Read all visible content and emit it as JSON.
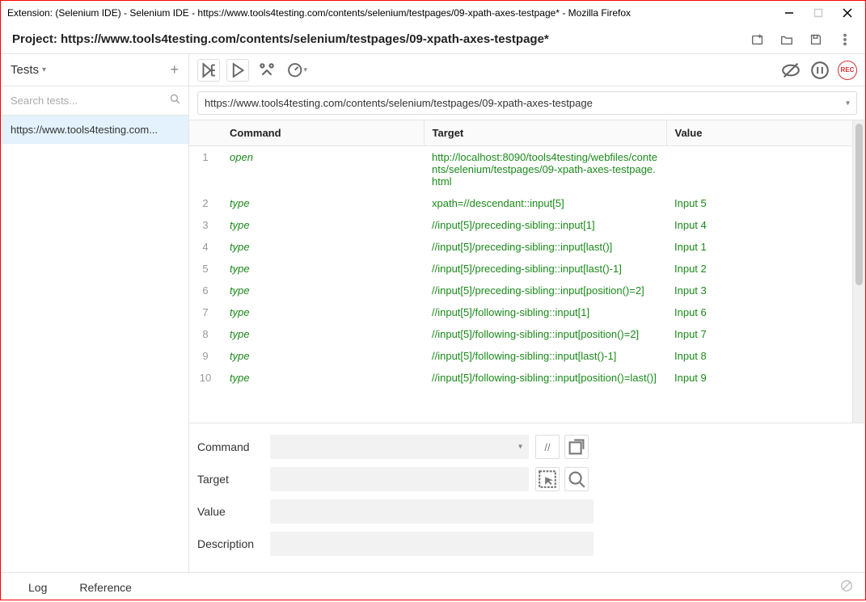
{
  "window": {
    "title": "Extension: (Selenium IDE) - Selenium IDE - https://www.tools4testing.com/contents/selenium/testpages/09-xpath-axes-testpage* - Mozilla Firefox"
  },
  "project": {
    "label": "Project:  https://www.tools4testing.com/contents/selenium/testpages/09-xpath-axes-testpage*"
  },
  "sidebar": {
    "heading": "Tests",
    "search_placeholder": "Search tests...",
    "test_item": "https://www.tools4testing.com..."
  },
  "url_field": "https://www.tools4testing.com/contents/selenium/testpages/09-xpath-axes-testpage",
  "headers": {
    "command": "Command",
    "target": "Target",
    "value": "Value"
  },
  "rows": [
    {
      "n": "1",
      "cmd": "open",
      "tgt": "http://localhost:8090/tools4testing/webfiles/contents/selenium/testpages/09-xpath-axes-testpage.html",
      "val": ""
    },
    {
      "n": "2",
      "cmd": "type",
      "tgt": "xpath=//descendant::input[5]",
      "val": "Input 5"
    },
    {
      "n": "3",
      "cmd": "type",
      "tgt": "//input[5]/preceding-sibling::input[1]",
      "val": "Input 4"
    },
    {
      "n": "4",
      "cmd": "type",
      "tgt": "//input[5]/preceding-sibling::input[last()]",
      "val": "Input 1"
    },
    {
      "n": "5",
      "cmd": "type",
      "tgt": "//input[5]/preceding-sibling::input[last()-1]",
      "val": "Input 2"
    },
    {
      "n": "6",
      "cmd": "type",
      "tgt": "//input[5]/preceding-sibling::input[position()=2]",
      "val": "Input 3"
    },
    {
      "n": "7",
      "cmd": "type",
      "tgt": "//input[5]/following-sibling::input[1]",
      "val": "Input 6"
    },
    {
      "n": "8",
      "cmd": "type",
      "tgt": "//input[5]/following-sibling::input[position()=2]",
      "val": "Input 7"
    },
    {
      "n": "9",
      "cmd": "type",
      "tgt": "//input[5]/following-sibling::input[last()-1]",
      "val": "Input 8"
    },
    {
      "n": "10",
      "cmd": "type",
      "tgt": "//input[5]/following-sibling::input[position()=last()]",
      "val": "Input 9"
    }
  ],
  "editor": {
    "command_label": "Command",
    "target_label": "Target",
    "value_label": "Value",
    "description_label": "Description",
    "slash_btn": "//"
  },
  "bottom": {
    "log": "Log",
    "reference": "Reference"
  },
  "rec_label": "REC",
  "colors": {
    "accent_green": "#1a8a1a",
    "row_highlight": "#e3f2fd",
    "record_red": "#d32f2f",
    "border": "#e5e5e5"
  }
}
